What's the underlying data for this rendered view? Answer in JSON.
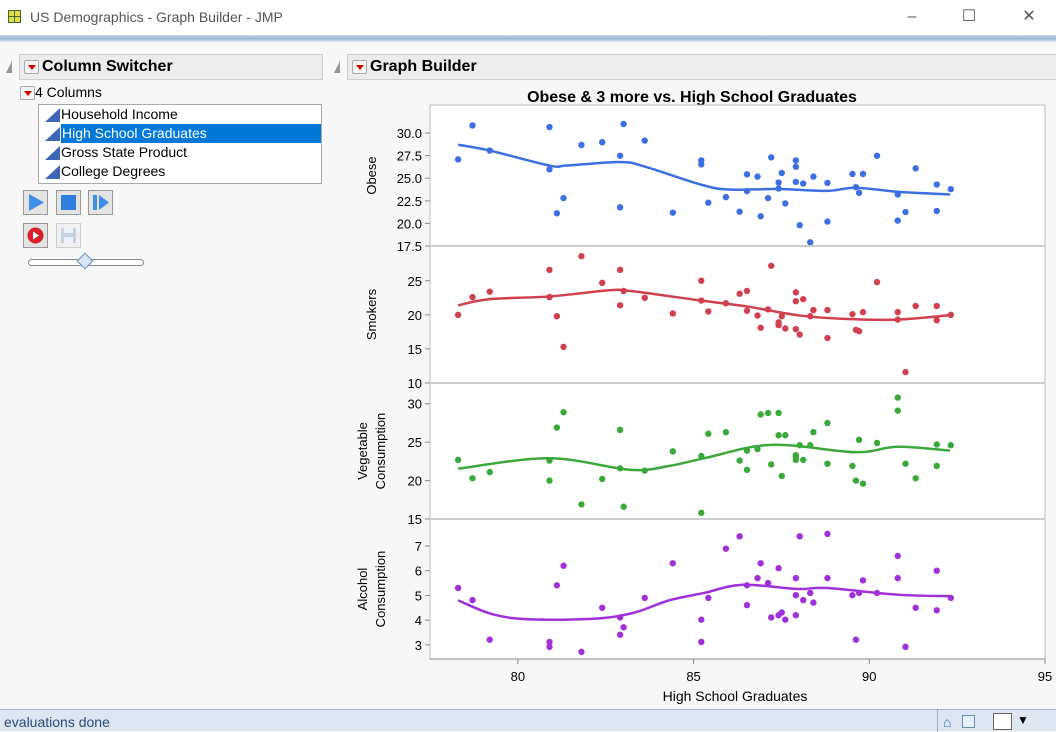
{
  "window": {
    "title": "US Demographics - Graph Builder - JMP",
    "minimize": "–",
    "maximize": "☐",
    "close": "✕"
  },
  "column_switcher": {
    "header": "Column Switcher",
    "count_label": "4 Columns",
    "columns": [
      "Household Income",
      "High School Graduates",
      "Gross State Product",
      "College Degrees"
    ],
    "selected_index": 1,
    "slider_fraction": 0.5
  },
  "graph_builder": {
    "header": "Graph Builder"
  },
  "status": {
    "text": "evaluations done"
  },
  "chart_data": {
    "type": "scatter",
    "title": "Obese & 3 more vs. High School Graduates",
    "xlabel": "High School Graduates",
    "xlim": [
      77.5,
      95
    ],
    "xticks": [
      "80",
      "85",
      "90",
      "95"
    ],
    "xtick_values": [
      80,
      85,
      90,
      95
    ],
    "panels": [
      {
        "name": "Obese",
        "ylabel": [
          "Obese"
        ],
        "color": "#3c6fe0",
        "ylim": [
          17.5,
          33.1
        ],
        "yticks": [
          "17.5",
          "20.0",
          "22.5",
          "25.0",
          "27.5",
          "30.0"
        ],
        "ytick_values": [
          17.5,
          20,
          22.5,
          25,
          27.5,
          30
        ],
        "x": [
          78.3,
          78.71,
          79.2,
          80.9,
          80.9,
          81.11,
          81.3,
          81.81,
          82.4,
          82.91,
          82.91,
          83.01,
          83.61,
          84.41,
          85.22,
          85.22,
          85.42,
          85.92,
          86.31,
          86.52,
          86.52,
          86.82,
          86.91,
          87.12,
          87.21,
          87.42,
          87.42,
          87.51,
          87.61,
          87.91,
          87.91,
          87.91,
          88.02,
          88.12,
          88.32,
          88.41,
          88.81,
          88.81,
          89.52,
          89.62,
          89.71,
          89.82,
          90.22,
          90.81,
          90.81,
          91.03,
          91.32,
          91.92,
          91.92,
          92.32
        ],
        "y": [
          27.08,
          30.84,
          28.06,
          30.66,
          25.98,
          21.12,
          22.8,
          28.68,
          28.98,
          27.48,
          21.78,
          30.99,
          29.16,
          21.19,
          26.97,
          26.53,
          22.29,
          22.91,
          21.3,
          25.43,
          23.57,
          25.18,
          20.79,
          22.8,
          27.3,
          24.52,
          23.86,
          25.58,
          22.21,
          26.97,
          26.27,
          24.59,
          19.8,
          24.41,
          17.9,
          25.18,
          24.48,
          20.2,
          25.47,
          24.01,
          23.38,
          25.47,
          27.48,
          23.2,
          20.31,
          21.26,
          26.09,
          24.3,
          21.37,
          23.79
        ],
        "smoother": {
          "x": [
            78.3,
            79.2,
            80.9,
            81.4,
            82.9,
            83.6,
            85.2,
            86.0,
            87.4,
            88.8,
            89.6,
            90.8,
            92.3
          ],
          "y": [
            28.7,
            28.06,
            26.4,
            26.4,
            26.8,
            26.3,
            24.3,
            23.75,
            23.8,
            23.6,
            23.95,
            23.5,
            23.2
          ]
        }
      },
      {
        "name": "Smokers",
        "ylabel": [
          "Smokers"
        ],
        "color": "#d0404f",
        "ylim": [
          10,
          30.1
        ],
        "yticks": [
          "10",
          "15",
          "20",
          "25"
        ],
        "ytick_values": [
          10,
          15,
          20,
          25
        ],
        "x": [
          78.3,
          78.71,
          79.2,
          80.9,
          80.9,
          81.11,
          81.3,
          81.81,
          82.4,
          82.91,
          82.91,
          83.01,
          83.61,
          84.41,
          85.22,
          85.22,
          85.42,
          85.92,
          86.31,
          86.52,
          86.52,
          86.82,
          86.91,
          87.12,
          87.21,
          87.42,
          87.42,
          87.51,
          87.61,
          87.91,
          87.91,
          87.91,
          88.02,
          88.12,
          88.32,
          88.41,
          88.81,
          88.81,
          89.52,
          89.62,
          89.71,
          89.82,
          90.22,
          90.81,
          90.81,
          91.03,
          91.32,
          91.92,
          91.92,
          92.32
        ],
        "y": [
          20.0,
          22.6,
          23.4,
          26.6,
          22.6,
          19.8,
          15.3,
          28.6,
          24.7,
          26.6,
          21.4,
          23.5,
          22.5,
          20.2,
          25.0,
          22.1,
          20.5,
          21.7,
          23.1,
          23.5,
          20.6,
          19.9,
          18.1,
          20.8,
          27.2,
          18.9,
          18.5,
          19.8,
          18.0,
          23.3,
          22.0,
          17.9,
          17.1,
          22.3,
          19.8,
          20.7,
          20.7,
          16.6,
          20.1,
          17.8,
          17.6,
          20.4,
          24.8,
          20.4,
          19.3,
          11.6,
          21.3,
          21.3,
          19.2,
          20.0
        ],
        "smoother": {
          "x": [
            78.3,
            79.2,
            80.9,
            82.6,
            83.2,
            85.2,
            86.5,
            87.95,
            89.3,
            90.8,
            92.3
          ],
          "y": [
            21.4,
            22.3,
            22.7,
            23.6,
            23.5,
            22.1,
            21.25,
            19.95,
            19.4,
            19.3,
            19.95
          ]
        }
      },
      {
        "name": "Vegetable Consumption",
        "ylabel": [
          "Vegetable",
          "Consumption"
        ],
        "color": "#3aa83a",
        "ylim": [
          15,
          32.7
        ],
        "yticks": [
          "15",
          "20",
          "25",
          "30"
        ],
        "ytick_values": [
          15,
          20,
          25,
          30
        ],
        "x": [
          78.3,
          78.71,
          79.2,
          80.9,
          80.9,
          81.11,
          81.3,
          81.81,
          82.4,
          82.91,
          82.91,
          83.01,
          83.61,
          84.41,
          85.22,
          85.22,
          85.42,
          85.92,
          86.31,
          86.52,
          86.52,
          86.82,
          86.91,
          87.12,
          87.21,
          87.42,
          87.42,
          87.51,
          87.61,
          87.91,
          87.91,
          87.91,
          88.02,
          88.12,
          88.32,
          88.41,
          88.81,
          88.81,
          89.52,
          89.62,
          89.71,
          89.82,
          90.22,
          90.81,
          90.81,
          91.03,
          91.32,
          91.92,
          91.92,
          92.32
        ],
        "y": [
          22.7,
          20.3,
          21.1,
          22.6,
          20.0,
          26.9,
          28.9,
          16.9,
          20.2,
          26.6,
          21.6,
          16.6,
          21.3,
          23.8,
          23.2,
          15.8,
          26.1,
          26.3,
          22.6,
          23.9,
          21.4,
          24.1,
          28.6,
          28.8,
          22.1,
          28.8,
          25.9,
          20.6,
          25.9,
          23.3,
          23.1,
          22.7,
          24.6,
          22.7,
          24.6,
          26.3,
          27.5,
          22.2,
          21.9,
          20.0,
          25.3,
          19.6,
          24.9,
          30.8,
          29.1,
          22.2,
          20.3,
          24.7,
          21.9,
          24.6
        ],
        "smoother": {
          "x": [
            78.3,
            80.9,
            83.2,
            84.3,
            85.3,
            87.2,
            89.6,
            90.8,
            92.3
          ],
          "y": [
            21.55,
            22.9,
            21.4,
            21.9,
            22.9,
            24.65,
            23.7,
            24.4,
            23.9
          ]
        }
      },
      {
        "name": "Alcohol Consumption",
        "ylabel": [
          "Alcohol",
          "Consumption"
        ],
        "color": "#a030d8",
        "ylim": [
          2.43,
          8.09
        ],
        "yticks": [
          "3",
          "4",
          "5",
          "6",
          "7"
        ],
        "ytick_values": [
          3,
          4,
          5,
          6,
          7
        ],
        "x": [
          78.3,
          78.71,
          79.2,
          80.9,
          80.9,
          81.11,
          81.3,
          81.81,
          82.4,
          82.91,
          82.91,
          83.01,
          83.61,
          84.41,
          85.22,
          85.22,
          85.42,
          85.92,
          86.31,
          86.52,
          86.52,
          86.82,
          86.91,
          87.12,
          87.21,
          87.42,
          87.42,
          87.51,
          87.61,
          87.91,
          87.91,
          87.91,
          88.02,
          88.12,
          88.32,
          88.41,
          88.81,
          88.81,
          89.52,
          89.62,
          89.71,
          89.82,
          90.22,
          90.81,
          90.81,
          91.03,
          91.32,
          91.92,
          91.92,
          92.32
        ],
        "y": [
          5.3,
          4.81,
          3.21,
          3.12,
          2.92,
          5.41,
          6.2,
          2.72,
          4.5,
          4.11,
          3.41,
          3.71,
          4.9,
          6.3,
          4.02,
          3.12,
          4.9,
          6.89,
          7.39,
          5.41,
          4.61,
          5.7,
          6.3,
          5.5,
          4.11,
          6.1,
          4.2,
          4.31,
          4.02,
          5.7,
          5.01,
          4.2,
          7.39,
          4.81,
          5.1,
          4.71,
          7.49,
          5.7,
          5.01,
          3.21,
          5.1,
          5.61,
          5.1,
          6.6,
          5.7,
          2.92,
          4.5,
          6.0,
          4.4,
          4.9
        ],
        "smoother": {
          "x": [
            78.3,
            79.3,
            80.4,
            82.2,
            83.3,
            84.3,
            85.3,
            86.4,
            87.95,
            88.8,
            90.8,
            92.3
          ],
          "y": [
            4.8,
            4.23,
            4.03,
            4.06,
            4.3,
            4.8,
            5.1,
            5.43,
            5.26,
            5.3,
            5.03,
            4.97
          ]
        }
      }
    ]
  }
}
